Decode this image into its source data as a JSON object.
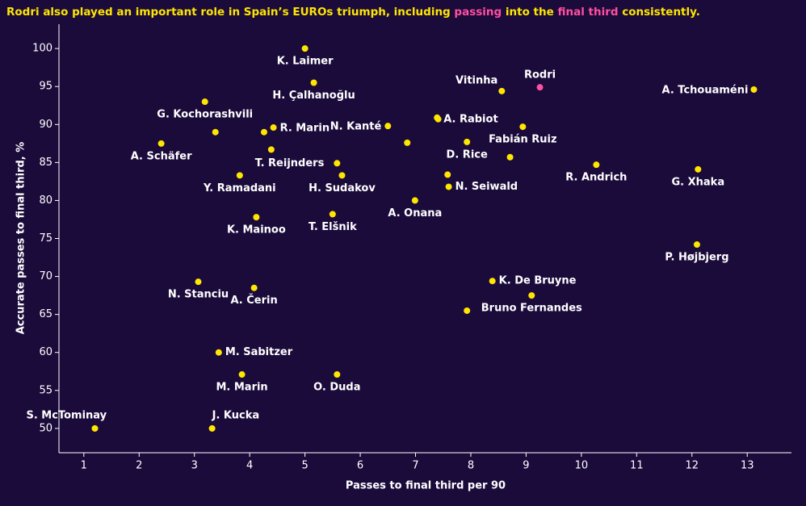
{
  "chart_data": {
    "type": "scatter",
    "title_parts": [
      {
        "text": "Rodri also played an important role in Spain’s EUROs triumph, including ",
        "color": "#ffe600"
      },
      {
        "text": "passing",
        "color": "#ff4fa0"
      },
      {
        "text": " into the ",
        "color": "#ffe600"
      },
      {
        "text": "final third",
        "color": "#ff4fa0"
      },
      {
        "text": " consistently.",
        "color": "#ffe600"
      }
    ],
    "x_label": "Passes to final third per 90",
    "y_label": "Accurate passes to final third, %",
    "xlim": [
      0.55,
      13.8
    ],
    "ylim": [
      46.8,
      103.2
    ],
    "xticks": [
      1,
      2,
      3,
      4,
      5,
      6,
      7,
      8,
      9,
      10,
      11,
      12,
      13
    ],
    "yticks": [
      50,
      55,
      60,
      65,
      70,
      75,
      80,
      85,
      90,
      95,
      100
    ],
    "series": [
      {
        "color": "#ffe600",
        "colors": [
          "#ffe600",
          "#ffe600",
          "#ffe600",
          "#ff4fa0",
          "#ffe600",
          "#ffe600",
          "#ffe600",
          "#ffe600",
          "#ffe600",
          "#ffe600",
          "#ffe600",
          "#ffe600",
          "#ffe600",
          "#ffe600",
          "#ffe600",
          "#ffe600",
          "#ffe600",
          "#ffe600",
          "#ffe600",
          "#ffe600",
          "#ffe600",
          "#ffe600",
          "#ffe600",
          "#ffe600",
          "#ffe600",
          "#ffe600",
          "#ffe600",
          "#ffe600",
          "#ffe600",
          "#ffe600",
          "#ffe600",
          "#ffe600",
          "#ffe600",
          "#ffe600",
          "#ffe600",
          "#ffe600",
          "#ffe600",
          "#ffe600",
          "#ffe600"
        ],
        "labels": [
          "K. Laimer",
          "H. Çalhanoğlu",
          "Vitinha",
          "Rodri",
          "A. Tchouaméni",
          "G. Kochorashvili",
          "A. Schäfer",
          null,
          null,
          "R. Marin",
          "N. Kanté",
          null,
          "A. Rabiot",
          null,
          "D. Rice",
          "Fabián Ruiz",
          null,
          null,
          "T. Reijnders",
          "Y. Ramadani",
          "H. Sudakov",
          null,
          "N. Seiwald",
          "A. Onana",
          "R. Andrich",
          "G. Xhaka",
          "K. Mainoo",
          "T. Elšnik",
          "P. Højbjerg",
          "N. Stanciu",
          "A. Čerin",
          "K. De Bruyne",
          "Bruno Fernandes",
          null,
          "M. Sabitzer",
          "M. Marin",
          "O. Duda",
          "S. McTominay",
          "J. Kucka"
        ],
        "x": [
          5.0,
          5.16,
          8.56,
          9.25,
          13.12,
          3.19,
          2.4,
          3.38,
          4.26,
          4.43,
          6.5,
          6.85,
          7.39,
          7.41,
          7.93,
          8.94,
          8.71,
          4.39,
          5.58,
          3.82,
          5.67,
          7.58,
          7.6,
          6.99,
          10.27,
          12.11,
          4.12,
          5.5,
          12.09,
          3.07,
          4.08,
          8.39,
          9.1,
          7.93,
          3.44,
          3.86,
          5.58,
          1.2,
          3.32
        ],
        "y": [
          100,
          95.5,
          94.4,
          94.9,
          94.6,
          93.0,
          87.5,
          89.0,
          89.0,
          89.6,
          89.8,
          87.6,
          90.9,
          90.7,
          87.7,
          89.7,
          85.7,
          86.7,
          84.9,
          83.3,
          83.3,
          83.4,
          81.8,
          80.0,
          84.7,
          84.1,
          77.8,
          78.2,
          74.2,
          69.3,
          68.5,
          69.4,
          67.5,
          65.5,
          60.0,
          57.1,
          57.1,
          50.0,
          50.0
        ]
      }
    ]
  }
}
